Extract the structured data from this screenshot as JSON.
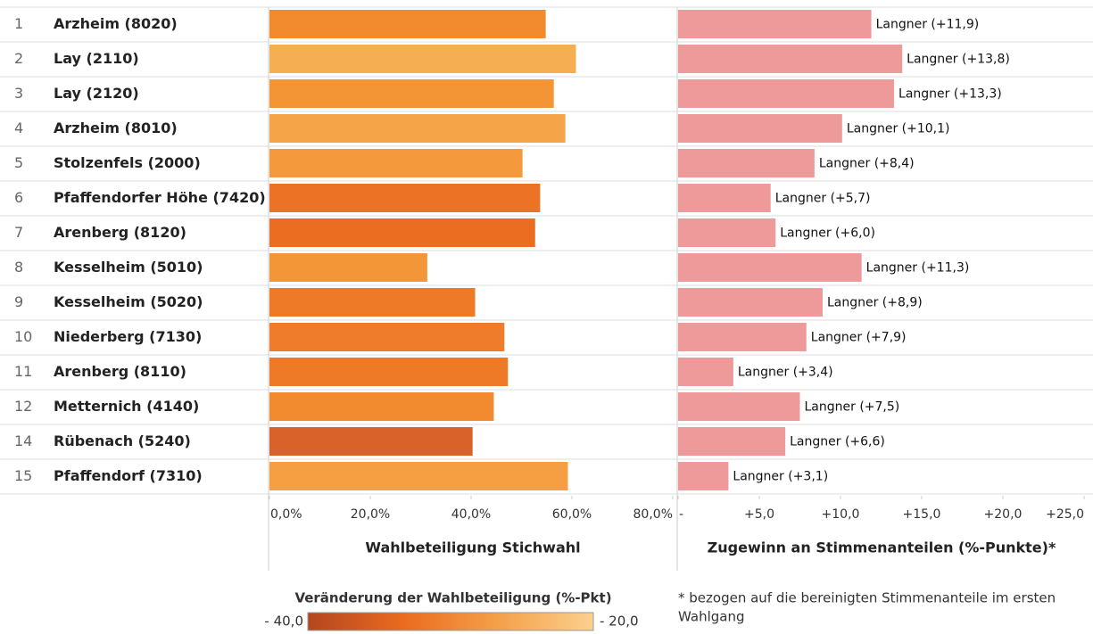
{
  "chart_data": {
    "type": "bar",
    "ranks": [
      "1",
      "2",
      "3",
      "4",
      "5",
      "6",
      "7",
      "8",
      "9",
      "10",
      "11",
      "12",
      "14",
      "15"
    ],
    "categories": [
      "Arzheim (8020)",
      "Lay (2110)",
      "Lay (2120)",
      "Arzheim (8010)",
      "Stolzenfels (2000)",
      "Pfaffendorfer Höhe (7420)",
      "Arenberg (8120)",
      "Kesselheim (5010)",
      "Kesselheim (5020)",
      "Niederberg (7130)",
      "Arenberg (8110)",
      "Metternich (4140)",
      "Rübenach (5240)",
      "Pfaffendorf (7310)"
    ],
    "turnout": {
      "xlabel": "Wahlbeteiligung Stichwahl",
      "values": [
        54.8,
        60.8,
        56.4,
        58.7,
        50.2,
        53.7,
        52.7,
        31.3,
        40.8,
        46.6,
        47.3,
        44.5,
        40.3,
        59.2
      ],
      "colors": [
        "#f28a2e",
        "#f6ae52",
        "#f39435",
        "#f5a548",
        "#f49a3c",
        "#ec7225",
        "#ea6d22",
        "#f39637",
        "#ee7a28",
        "#ef7c2a",
        "#ee7a28",
        "#f28a2f",
        "#d9622a",
        "#f59f42"
      ],
      "xlim": [
        0,
        80
      ],
      "xticks": [
        {
          "value": 0,
          "label": "0,0%"
        },
        {
          "value": 20,
          "label": "20,0%"
        },
        {
          "value": 40,
          "label": "40,0%"
        },
        {
          "value": 60,
          "label": "60,0%"
        },
        {
          "value": 80,
          "label": "80,0%"
        }
      ]
    },
    "gain": {
      "xlabel": "Zugewinn an Stimmenanteilen (%-Punkte)*",
      "values": [
        11.9,
        13.8,
        13.3,
        10.1,
        8.4,
        5.7,
        6.0,
        11.3,
        8.9,
        7.9,
        3.4,
        7.5,
        6.6,
        3.1
      ],
      "value_labels": [
        "Langner (+11,9)",
        "Langner (+13,8)",
        "Langner (+13,3)",
        "Langner (+10,1)",
        "Langner (+8,4)",
        "Langner (+5,7)",
        "Langner (+6,0)",
        "Langner (+11,3)",
        "Langner (+8,9)",
        "Langner (+7,9)",
        "Langner (+3,4)",
        "Langner (+7,5)",
        "Langner (+6,6)",
        "Langner (+3,1)"
      ],
      "color": "#ee9a9a",
      "xlim": [
        0,
        25
      ],
      "xticks": [
        {
          "value": 0,
          "label": "-"
        },
        {
          "value": 5,
          "label": "+5,0"
        },
        {
          "value": 10,
          "label": "+10,0"
        },
        {
          "value": 15,
          "label": "+15,0"
        },
        {
          "value": 20,
          "label": "+20,0"
        },
        {
          "value": 25,
          "label": "+25,0"
        }
      ]
    },
    "legend": {
      "title": "Veränderung der Wahlbeteiligung (%-Pkt)",
      "min": {
        "value": -40,
        "label": "- 40,0"
      },
      "max": {
        "value": -20,
        "label": "- 20,0"
      },
      "colors": [
        "#b4461f",
        "#ea6b20",
        "#f4a04a",
        "#fbd08e"
      ]
    },
    "footnote": [
      "* bezogen auf die bereinigten Stimmenanteile im ersten",
      "Wahlgang"
    ]
  }
}
